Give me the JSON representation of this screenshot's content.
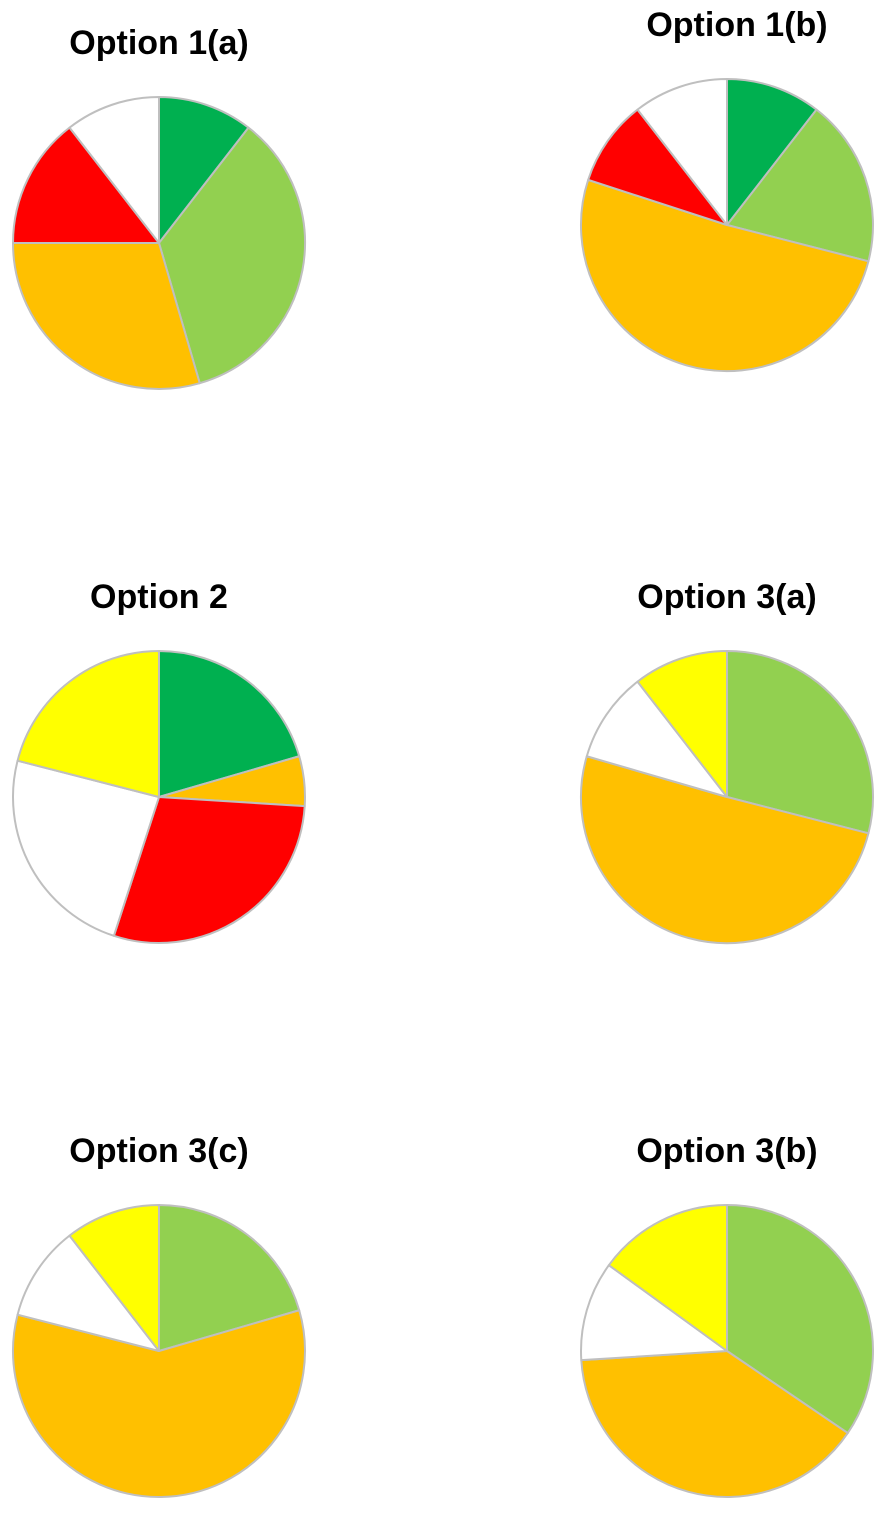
{
  "colors": {
    "dark_green": "#00B050",
    "light_green": "#92D050",
    "amber": "#FFC000",
    "red": "#FF0000",
    "yellow": "#FFFF00",
    "white": "#FFFFFF",
    "border": "#BFBFBF"
  },
  "chart_data": [
    {
      "type": "pie",
      "title": "Option 1(a)",
      "slices": [
        {
          "color": "#00B050",
          "value": 10.5
        },
        {
          "color": "#92D050",
          "value": 35.0
        },
        {
          "color": "#FFC000",
          "value": 29.5
        },
        {
          "color": "#FF0000",
          "value": 14.5
        },
        {
          "color": "#FFFFFF",
          "value": 10.5
        }
      ]
    },
    {
      "type": "pie",
      "title": "Option 1(b)",
      "slices": [
        {
          "color": "#00B050",
          "value": 10.5
        },
        {
          "color": "#92D050",
          "value": 18.5
        },
        {
          "color": "#FFC000",
          "value": 51.0
        },
        {
          "color": "#FF0000",
          "value": 9.5
        },
        {
          "color": "#FFFFFF",
          "value": 10.5
        }
      ]
    },
    {
      "type": "pie",
      "title": "Option 2",
      "slices": [
        {
          "color": "#00B050",
          "value": 20.5
        },
        {
          "color": "#FFC000",
          "value": 5.5
        },
        {
          "color": "#FF0000",
          "value": 29.0
        },
        {
          "color": "#FFFFFF",
          "value": 24.0
        },
        {
          "color": "#FFFF00",
          "value": 21.0
        }
      ]
    },
    {
      "type": "pie",
      "title": "Option 3(a)",
      "slices": [
        {
          "color": "#92D050",
          "value": 29.0
        },
        {
          "color": "#FFC000",
          "value": 50.5
        },
        {
          "color": "#FFFFFF",
          "value": 10.0
        },
        {
          "color": "#FFFF00",
          "value": 10.5
        }
      ]
    },
    {
      "type": "pie",
      "title": "Option 3(c)",
      "slices": [
        {
          "color": "#92D050",
          "value": 20.5
        },
        {
          "color": "#FFC000",
          "value": 58.5
        },
        {
          "color": "#FFFFFF",
          "value": 10.5
        },
        {
          "color": "#FFFF00",
          "value": 10.5
        }
      ]
    },
    {
      "type": "pie",
      "title": "Option 3(b)",
      "slices": [
        {
          "color": "#92D050",
          "value": 34.5
        },
        {
          "color": "#FFC000",
          "value": 39.5
        },
        {
          "color": "#FFFFFF",
          "value": 11.0
        },
        {
          "color": "#FFFF00",
          "value": 15.0
        }
      ]
    }
  ]
}
